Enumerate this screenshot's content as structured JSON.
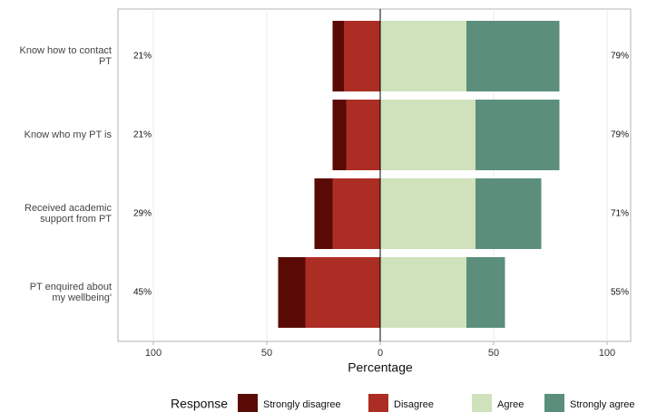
{
  "chart_data": {
    "type": "diverging-bar",
    "categories": [
      "Know how to contact\nPT",
      "Know who my PT is",
      "Received academic\nsupport from PT",
      "PT enquired about\nmy wellbeing'"
    ],
    "series": [
      {
        "name": "Strongly disagree",
        "color": "#5a0a05",
        "values": [
          -5,
          -6,
          -8,
          -12
        ]
      },
      {
        "name": "Disagree",
        "color": "#ac2d24",
        "values": [
          -16,
          -15,
          -21,
          -33
        ]
      },
      {
        "name": "Agree",
        "color": "#cfe2bb",
        "values": [
          38,
          42,
          42,
          38
        ]
      },
      {
        "name": "Strongly agree",
        "color": "#5b8f7b",
        "values": [
          41,
          37,
          29,
          17
        ]
      }
    ],
    "left_labels": [
      "21%",
      "21%",
      "29%",
      "45%"
    ],
    "right_labels": [
      "79%",
      "79%",
      "71%",
      "55%"
    ],
    "xlim": [
      -115.6,
      110.4
    ],
    "xticks": [
      {
        "value": -100,
        "label": "100"
      },
      {
        "value": -50,
        "label": "50"
      },
      0,
      50,
      100
    ],
    "xlabel": "Percentage",
    "legend_title": "Response",
    "legend_position": "bottom",
    "grid": true
  }
}
